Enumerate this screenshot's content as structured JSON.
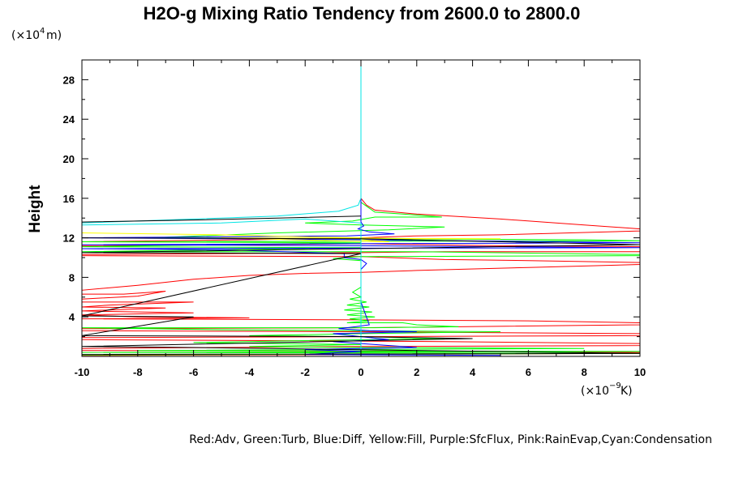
{
  "chart_data": {
    "type": "line",
    "title": "H2O-g Mixing Ratio Tendency from 2600.0 to 2800.0",
    "ylabel": "Height",
    "y_unit": {
      "prefix": "(×10",
      "exp": "4",
      "suffix": " m)"
    },
    "x_unit": {
      "prefix": "(×10",
      "exp": "−9",
      "suffix": " K)"
    },
    "xlim": [
      -10,
      10
    ],
    "ylim": [
      0,
      30
    ],
    "x_ticks": [
      -10,
      -8,
      -6,
      -4,
      -2,
      0,
      2,
      4,
      6,
      8,
      10
    ],
    "y_ticks": [
      4,
      8,
      12,
      16,
      20,
      24,
      28
    ],
    "legend_text": "Red:Adv, Green:Turb, Blue:Diff, Yellow:Fill, Purple:SfcFlux, Pink:RainEvap,Cyan:Condensation",
    "grid": false,
    "series": [
      {
        "name": "Adv",
        "color": "#ff0000",
        "points": [
          [
            0,
            30
          ],
          [
            0,
            16
          ],
          [
            0.2,
            15.3
          ],
          [
            0.5,
            14.8
          ],
          [
            2,
            14.4
          ],
          [
            5,
            13.9
          ],
          [
            8,
            13.3
          ],
          [
            10,
            12.9
          ],
          [
            10,
            12.7
          ],
          [
            5,
            12.3
          ],
          [
            2,
            12.2
          ],
          [
            0,
            12.0
          ],
          [
            -4,
            11.8
          ],
          [
            -10,
            11.6
          ],
          [
            -10,
            11.2
          ],
          [
            -4,
            11.3
          ],
          [
            0,
            11.4
          ],
          [
            5,
            11.2
          ],
          [
            10,
            11.1
          ],
          [
            10,
            10.6
          ],
          [
            3,
            10.6
          ],
          [
            0,
            10.5
          ],
          [
            -5,
            10.4
          ],
          [
            -10,
            10.3
          ],
          [
            -10,
            10.2
          ],
          [
            0,
            10.1
          ],
          [
            3,
            9.8
          ],
          [
            6,
            9.7
          ],
          [
            10,
            9.5
          ],
          [
            10,
            9.3
          ],
          [
            6,
            9.0
          ],
          [
            2,
            8.7
          ],
          [
            0,
            8.5
          ],
          [
            -2,
            8.4
          ],
          [
            -4,
            8.2
          ],
          [
            -6,
            7.8
          ],
          [
            -8,
            7.2
          ],
          [
            -10,
            6.7
          ],
          [
            -10,
            6.3
          ],
          [
            -8.5,
            6.3
          ],
          [
            -7.5,
            6.5
          ],
          [
            -7,
            6.6
          ],
          [
            -8,
            6.1
          ],
          [
            -10,
            5.8
          ],
          [
            -10,
            5.5
          ],
          [
            -6,
            5.5
          ],
          [
            -9,
            5.2
          ],
          [
            -10,
            5.0
          ],
          [
            -7,
            4.9
          ],
          [
            -10,
            4.6
          ],
          [
            -6,
            4.4
          ],
          [
            -10,
            4.2
          ],
          [
            -8,
            4.0
          ],
          [
            -4,
            3.9
          ],
          [
            -10,
            3.8
          ],
          [
            0,
            3.7
          ],
          [
            6,
            3.6
          ],
          [
            10,
            3.4
          ],
          [
            10,
            3.2
          ],
          [
            0,
            2.9
          ],
          [
            -10,
            2.8
          ],
          [
            -10,
            2.6
          ],
          [
            0,
            2.5
          ],
          [
            10,
            2.3
          ],
          [
            10,
            2.1
          ],
          [
            0,
            2.0
          ],
          [
            -10,
            1.9
          ],
          [
            -10,
            1.7
          ],
          [
            3,
            1.5
          ],
          [
            10,
            1.3
          ],
          [
            10,
            1.1
          ],
          [
            0,
            1.0
          ],
          [
            -10,
            0.8
          ],
          [
            -10,
            0.6
          ],
          [
            5,
            0.5
          ],
          [
            10,
            0.4
          ],
          [
            10,
            0.3
          ],
          [
            0,
            0.2
          ],
          [
            -10,
            0.1
          ]
        ]
      },
      {
        "name": "Turb",
        "color": "#00ff00",
        "points": [
          [
            0,
            30
          ],
          [
            0,
            15.6
          ],
          [
            0.5,
            14.6
          ],
          [
            2,
            14.3
          ],
          [
            2.9,
            14.1
          ],
          [
            0.5,
            14.1
          ],
          [
            -0.3,
            13.7
          ],
          [
            -2,
            13.5
          ],
          [
            0,
            13.3
          ],
          [
            3,
            13.1
          ],
          [
            1,
            12.8
          ],
          [
            -3,
            12.5
          ],
          [
            -7.5,
            12.0
          ],
          [
            0,
            11.9
          ],
          [
            8,
            11.8
          ],
          [
            10,
            11.7
          ],
          [
            -10,
            11.6
          ],
          [
            0,
            11.5
          ],
          [
            -10,
            11.1
          ],
          [
            0,
            11.0
          ],
          [
            -10,
            10.6
          ],
          [
            2,
            10.6
          ],
          [
            10,
            10.3
          ],
          [
            10,
            10.2
          ],
          [
            0,
            10.1
          ],
          [
            -1,
            9.9
          ],
          [
            0,
            9.7
          ],
          [
            0,
            7.0
          ],
          [
            -0.3,
            6.5
          ],
          [
            0,
            6.0
          ],
          [
            -0.4,
            5.8
          ],
          [
            0.2,
            5.5
          ],
          [
            -0.5,
            5.2
          ],
          [
            0.3,
            5.0
          ],
          [
            -0.6,
            4.7
          ],
          [
            0.4,
            4.5
          ],
          [
            -0.5,
            4.2
          ],
          [
            0.5,
            4.0
          ],
          [
            -0.4,
            3.8
          ],
          [
            0.3,
            3.6
          ],
          [
            -0.5,
            3.4
          ],
          [
            1.5,
            3.4
          ],
          [
            2,
            3.2
          ],
          [
            3.5,
            3.0
          ],
          [
            0.5,
            2.9
          ],
          [
            -10,
            2.9
          ],
          [
            -5,
            2.7
          ],
          [
            0,
            2.6
          ],
          [
            5,
            2.5
          ],
          [
            0,
            2.3
          ],
          [
            -4,
            2.1
          ],
          [
            0,
            2.0
          ],
          [
            3,
            1.8
          ],
          [
            -2,
            1.6
          ],
          [
            -6,
            1.4
          ],
          [
            0,
            1.2
          ],
          [
            -4,
            1.0
          ],
          [
            0,
            0.9
          ],
          [
            8,
            0.8
          ],
          [
            -8,
            0.6
          ],
          [
            10,
            0.5
          ],
          [
            -10,
            0.4
          ],
          [
            10,
            0.3
          ],
          [
            -10,
            0.15
          ]
        ]
      },
      {
        "name": "Diff",
        "color": "#0000ff",
        "points": [
          [
            0,
            30
          ],
          [
            0,
            13.6
          ],
          [
            0.1,
            13.2
          ],
          [
            -0.1,
            12.9
          ],
          [
            0.3,
            12.6
          ],
          [
            1.2,
            12.4
          ],
          [
            -0.5,
            12.2
          ],
          [
            -10,
            12.0
          ],
          [
            0,
            11.8
          ],
          [
            10,
            11.5
          ],
          [
            -10,
            11.3
          ],
          [
            0,
            11.2
          ],
          [
            10,
            11.0
          ],
          [
            -10,
            10.9
          ],
          [
            -5,
            10.8
          ],
          [
            -0.6,
            10.4
          ],
          [
            -0.6,
            10.0
          ],
          [
            0,
            9.8
          ],
          [
            0.2,
            9.4
          ],
          [
            0,
            8.8
          ],
          [
            0,
            5.5
          ],
          [
            0.3,
            3.2
          ],
          [
            -0.2,
            3.0
          ],
          [
            -0.8,
            2.8
          ],
          [
            0.3,
            2.6
          ],
          [
            2,
            2.5
          ],
          [
            -1,
            2.3
          ],
          [
            0,
            2.0
          ],
          [
            1,
            1.7
          ],
          [
            -1,
            1.5
          ],
          [
            0.5,
            1.2
          ],
          [
            2,
            0.9
          ],
          [
            -2,
            0.7
          ],
          [
            0,
            0.5
          ],
          [
            -2,
            0.2
          ],
          [
            5,
            0.1
          ]
        ]
      },
      {
        "name": "Fill",
        "color": "#ffff00",
        "points": [
          [
            -10,
            12.5
          ],
          [
            -5,
            12.3
          ],
          [
            -2,
            12.1
          ],
          [
            0,
            12.0
          ],
          [
            2,
            11.9
          ],
          [
            5,
            11.9
          ],
          [
            -5,
            12.0
          ],
          [
            -1,
            11.7
          ],
          [
            1,
            11.6
          ],
          [
            0,
            11.8
          ]
        ]
      },
      {
        "name": "Condensation",
        "color": "#00e5e5",
        "points": [
          [
            0,
            30
          ],
          [
            0,
            16
          ],
          [
            -0.1,
            15.3
          ],
          [
            -0.8,
            14.7
          ],
          [
            -3,
            14.2
          ],
          [
            -6,
            13.9
          ],
          [
            -10,
            13.5
          ],
          [
            -10,
            13.3
          ],
          [
            -5,
            13.5
          ],
          [
            -2,
            13.9
          ],
          [
            0,
            13.5
          ],
          [
            0,
            0
          ]
        ]
      },
      {
        "name": "",
        "color": "#000000",
        "points": [
          [
            0,
            14.2
          ],
          [
            -3,
            14.0
          ],
          [
            -6,
            13.8
          ],
          [
            -10,
            13.6
          ],
          [
            -10,
            12.0
          ],
          [
            0,
            11.9
          ],
          [
            10,
            11.3
          ],
          [
            -10,
            10.5
          ],
          [
            0,
            10.4
          ],
          [
            -10,
            4.1
          ],
          [
            -6,
            4.0
          ],
          [
            -10,
            2.1
          ],
          [
            0,
            2.0
          ],
          [
            4,
            1.8
          ],
          [
            -10,
            1.0
          ],
          [
            -6,
            0.9
          ],
          [
            10,
            0.3
          ],
          [
            -10,
            0.2
          ]
        ]
      }
    ]
  }
}
